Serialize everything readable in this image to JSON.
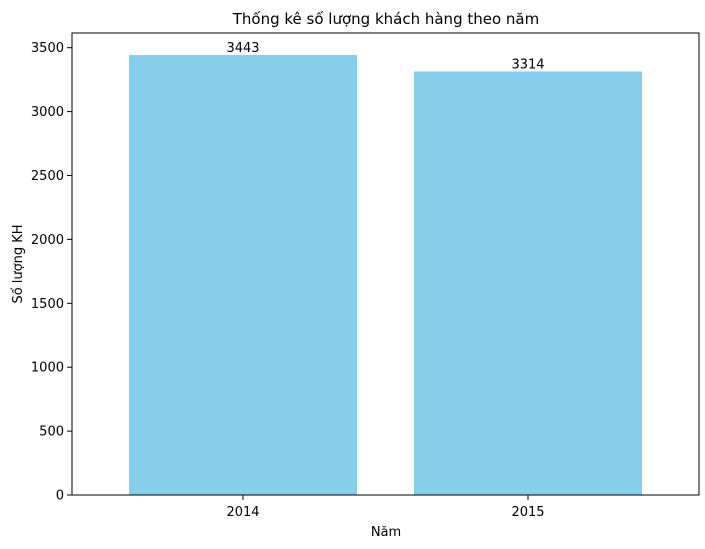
{
  "colors": {
    "bar": "#87ceeb",
    "axis": "#000000",
    "background": "#ffffff"
  },
  "chart_data": {
    "type": "bar",
    "title": "Thống kê số lượng khách hàng theo năm",
    "xlabel": "Năm",
    "ylabel": "Số lượng KH",
    "categories": [
      "2014",
      "2015"
    ],
    "values": [
      3443,
      3314
    ],
    "data_labels": [
      "3443",
      "3314"
    ],
    "ylim": [
      0,
      3615
    ],
    "yticks": [
      0,
      500,
      1000,
      1500,
      2000,
      2500,
      3000,
      3500
    ],
    "ytick_labels": [
      "0",
      "500",
      "1000",
      "1500",
      "2000",
      "2500",
      "3000",
      "3500"
    ],
    "grid": false,
    "legend": "none"
  }
}
